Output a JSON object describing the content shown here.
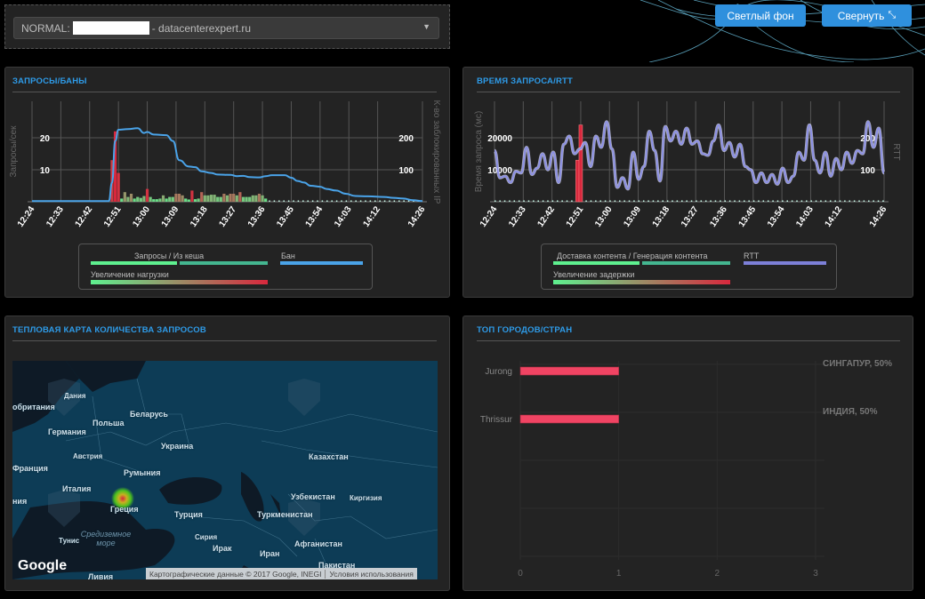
{
  "header": {
    "select_prefix": "NORMAL:",
    "select_suffix": "- datacenterexpert.ru",
    "light_bg_button": "Светлый фон",
    "collapse_button": "Свернуть"
  },
  "colors": {
    "accent": "#2e9be8",
    "ban": "#4aa3e8",
    "rtt": "#8a8ee6",
    "bar_low": "#5ef08f",
    "bar_high": "#d8283d",
    "cache": "#44b690",
    "city_bar": "#f04463"
  },
  "requests_chart": {
    "title": "ЗАПРОСЫ/БАНЫ",
    "y_left_label": "Запросы/сек",
    "y_right_label": "К-во заблокированных IP",
    "legend": {
      "requests": "Запросы / Из кеша",
      "ban": "Бан",
      "load": "Увеличение нагрузки"
    }
  },
  "rtt_chart": {
    "title": "ВРЕМЯ ЗАПРОСА/RTT",
    "y_left_label": "Время запроса (мс)",
    "y_right_label": "RTT",
    "legend": {
      "delivery": "Доставка контента / Генерация контента",
      "rtt": "RTT",
      "delay": "Увеличение задержки"
    }
  },
  "map_panel": {
    "title": "ТЕПЛОВАЯ КАРТА КОЛИЧЕСТВА ЗАПРОСОВ",
    "labels": [
      "Дания",
      "обритания",
      "Польша",
      "Беларусь",
      "Германия",
      "Украина",
      "Австрия",
      "Франция",
      "Румыния",
      "Казахстан",
      "Италия",
      "Узбекистан",
      "Киргизия",
      "ния",
      "Греция",
      "Турция",
      "Туркменистан",
      "Тунис",
      "Средиземное море",
      "Сирия",
      "Ирак",
      "Афганистан",
      "Иран",
      "Пакистан",
      "Ливия"
    ],
    "google": "Google",
    "attribution": "Картографические данные © 2017 Google, INEGI",
    "terms": "Условия использования"
  },
  "top_panel": {
    "title": "ТОП ГОРОДОВ/СТРАН"
  },
  "chart_data": [
    {
      "type": "bar+line",
      "title": "ЗАПРОСЫ/БАНЫ",
      "x_ticks": [
        "12:24",
        "12:33",
        "12:42",
        "12:51",
        "13:00",
        "13:09",
        "13:18",
        "13:27",
        "13:36",
        "13:45",
        "13:54",
        "14:03",
        "14:12",
        "14:26"
      ],
      "x_range": [
        "12:24",
        "14:26"
      ],
      "y_left_ticks": [
        10,
        20
      ],
      "y_right_ticks": [
        100,
        200
      ],
      "requests_start": "12:49",
      "requests": [
        13,
        22,
        9,
        1,
        3,
        1.5,
        2.5,
        1,
        1.5,
        1.2,
        1.8,
        4,
        1.5,
        0.8,
        0.8,
        1,
        2,
        1,
        1.5,
        1.5,
        2.5,
        2.5,
        2,
        1,
        0.7,
        3.5,
        0.8,
        1,
        3,
        2,
        2,
        2.2,
        2.2,
        1.5,
        1.5,
        2.5,
        2,
        2.5,
        2.5,
        2,
        3,
        1.5,
        1.5,
        1.5,
        2,
        2,
        2.5,
        2,
        1
      ],
      "load": [
        0.9,
        1,
        0.95,
        0.1,
        0.45,
        0.3,
        0.5,
        0.1,
        0.2,
        0.2,
        0.3,
        0.95,
        0.2,
        0.1,
        0.1,
        0.2,
        0.35,
        0.1,
        0.2,
        0.2,
        0.6,
        0.6,
        0.5,
        0.1,
        0.1,
        0.95,
        0.1,
        0.2,
        0.7,
        0.3,
        0.3,
        0.3,
        0.3,
        0.2,
        0.2,
        0.6,
        0.3,
        0.6,
        0.6,
        0.3,
        0.7,
        0.2,
        0.2,
        0.2,
        0.3,
        0.3,
        0.6,
        0.3,
        0.1
      ],
      "ban": [
        [
          0,
          2
        ],
        [
          24,
          2
        ],
        [
          25,
          60
        ],
        [
          26,
          190
        ],
        [
          27,
          225
        ],
        [
          30,
          227
        ],
        [
          33,
          230
        ],
        [
          35,
          215
        ],
        [
          36,
          218
        ],
        [
          38,
          210
        ],
        [
          42,
          208
        ],
        [
          44,
          190
        ],
        [
          46,
          130
        ],
        [
          49,
          110
        ],
        [
          51,
          108
        ],
        [
          53,
          95
        ],
        [
          56,
          90
        ],
        [
          58,
          85
        ],
        [
          62,
          84
        ],
        [
          64,
          80
        ],
        [
          66,
          81
        ],
        [
          68,
          77
        ],
        [
          71,
          76
        ],
        [
          73,
          80
        ],
        [
          75,
          83
        ],
        [
          79,
          83
        ],
        [
          81,
          75
        ],
        [
          83,
          65
        ],
        [
          85,
          60
        ],
        [
          87,
          50
        ],
        [
          90,
          47
        ],
        [
          92,
          40
        ],
        [
          95,
          35
        ],
        [
          98,
          25
        ],
        [
          101,
          18
        ],
        [
          105,
          17
        ],
        [
          110,
          15
        ],
        [
          113,
          12
        ],
        [
          116,
          10
        ],
        [
          119,
          5
        ],
        [
          122,
          2
        ]
      ]
    },
    {
      "type": "line+bar",
      "title": "ВРЕМЯ ЗАПРОСА/RTT",
      "x_ticks": [
        "12:24",
        "12:33",
        "12:42",
        "12:51",
        "13:00",
        "13:09",
        "13:18",
        "13:27",
        "13:36",
        "13:45",
        "13:54",
        "14:03",
        "14:12",
        "14:26"
      ],
      "y_left_ticks": [
        10000,
        20000
      ],
      "y_right_ticks": [
        100,
        200
      ],
      "request_time_spikes": [
        [
          "12:50",
          13000
        ],
        [
          "12:51",
          24000
        ]
      ],
      "rtt": [
        160,
        75,
        80,
        60,
        95,
        90,
        170,
        85,
        105,
        150,
        100,
        155,
        60,
        180,
        205,
        150,
        165,
        185,
        110,
        205,
        170,
        250,
        165,
        45,
        75,
        40,
        155,
        70,
        110,
        220,
        160,
        65,
        235,
        190,
        220,
        180,
        230,
        180,
        190,
        150,
        145,
        190,
        240,
        160,
        185,
        140,
        180,
        110,
        100,
        60,
        90,
        60,
        85,
        55,
        105,
        60,
        80,
        155,
        130,
        240,
        130,
        90,
        155,
        80,
        135,
        100,
        155,
        120,
        160,
        150,
        250,
        170,
        230,
        90
      ]
    },
    {
      "type": "bar",
      "orientation": "horizontal",
      "categories": [
        "Jurong",
        "Thrissur"
      ],
      "values": [
        1,
        1
      ],
      "x_ticks": [
        0,
        1,
        2,
        3
      ],
      "xlim": [
        0,
        3
      ],
      "annotations": [
        "СИНГАПУР, 50%",
        "ИНДИЯ, 50%"
      ]
    }
  ]
}
